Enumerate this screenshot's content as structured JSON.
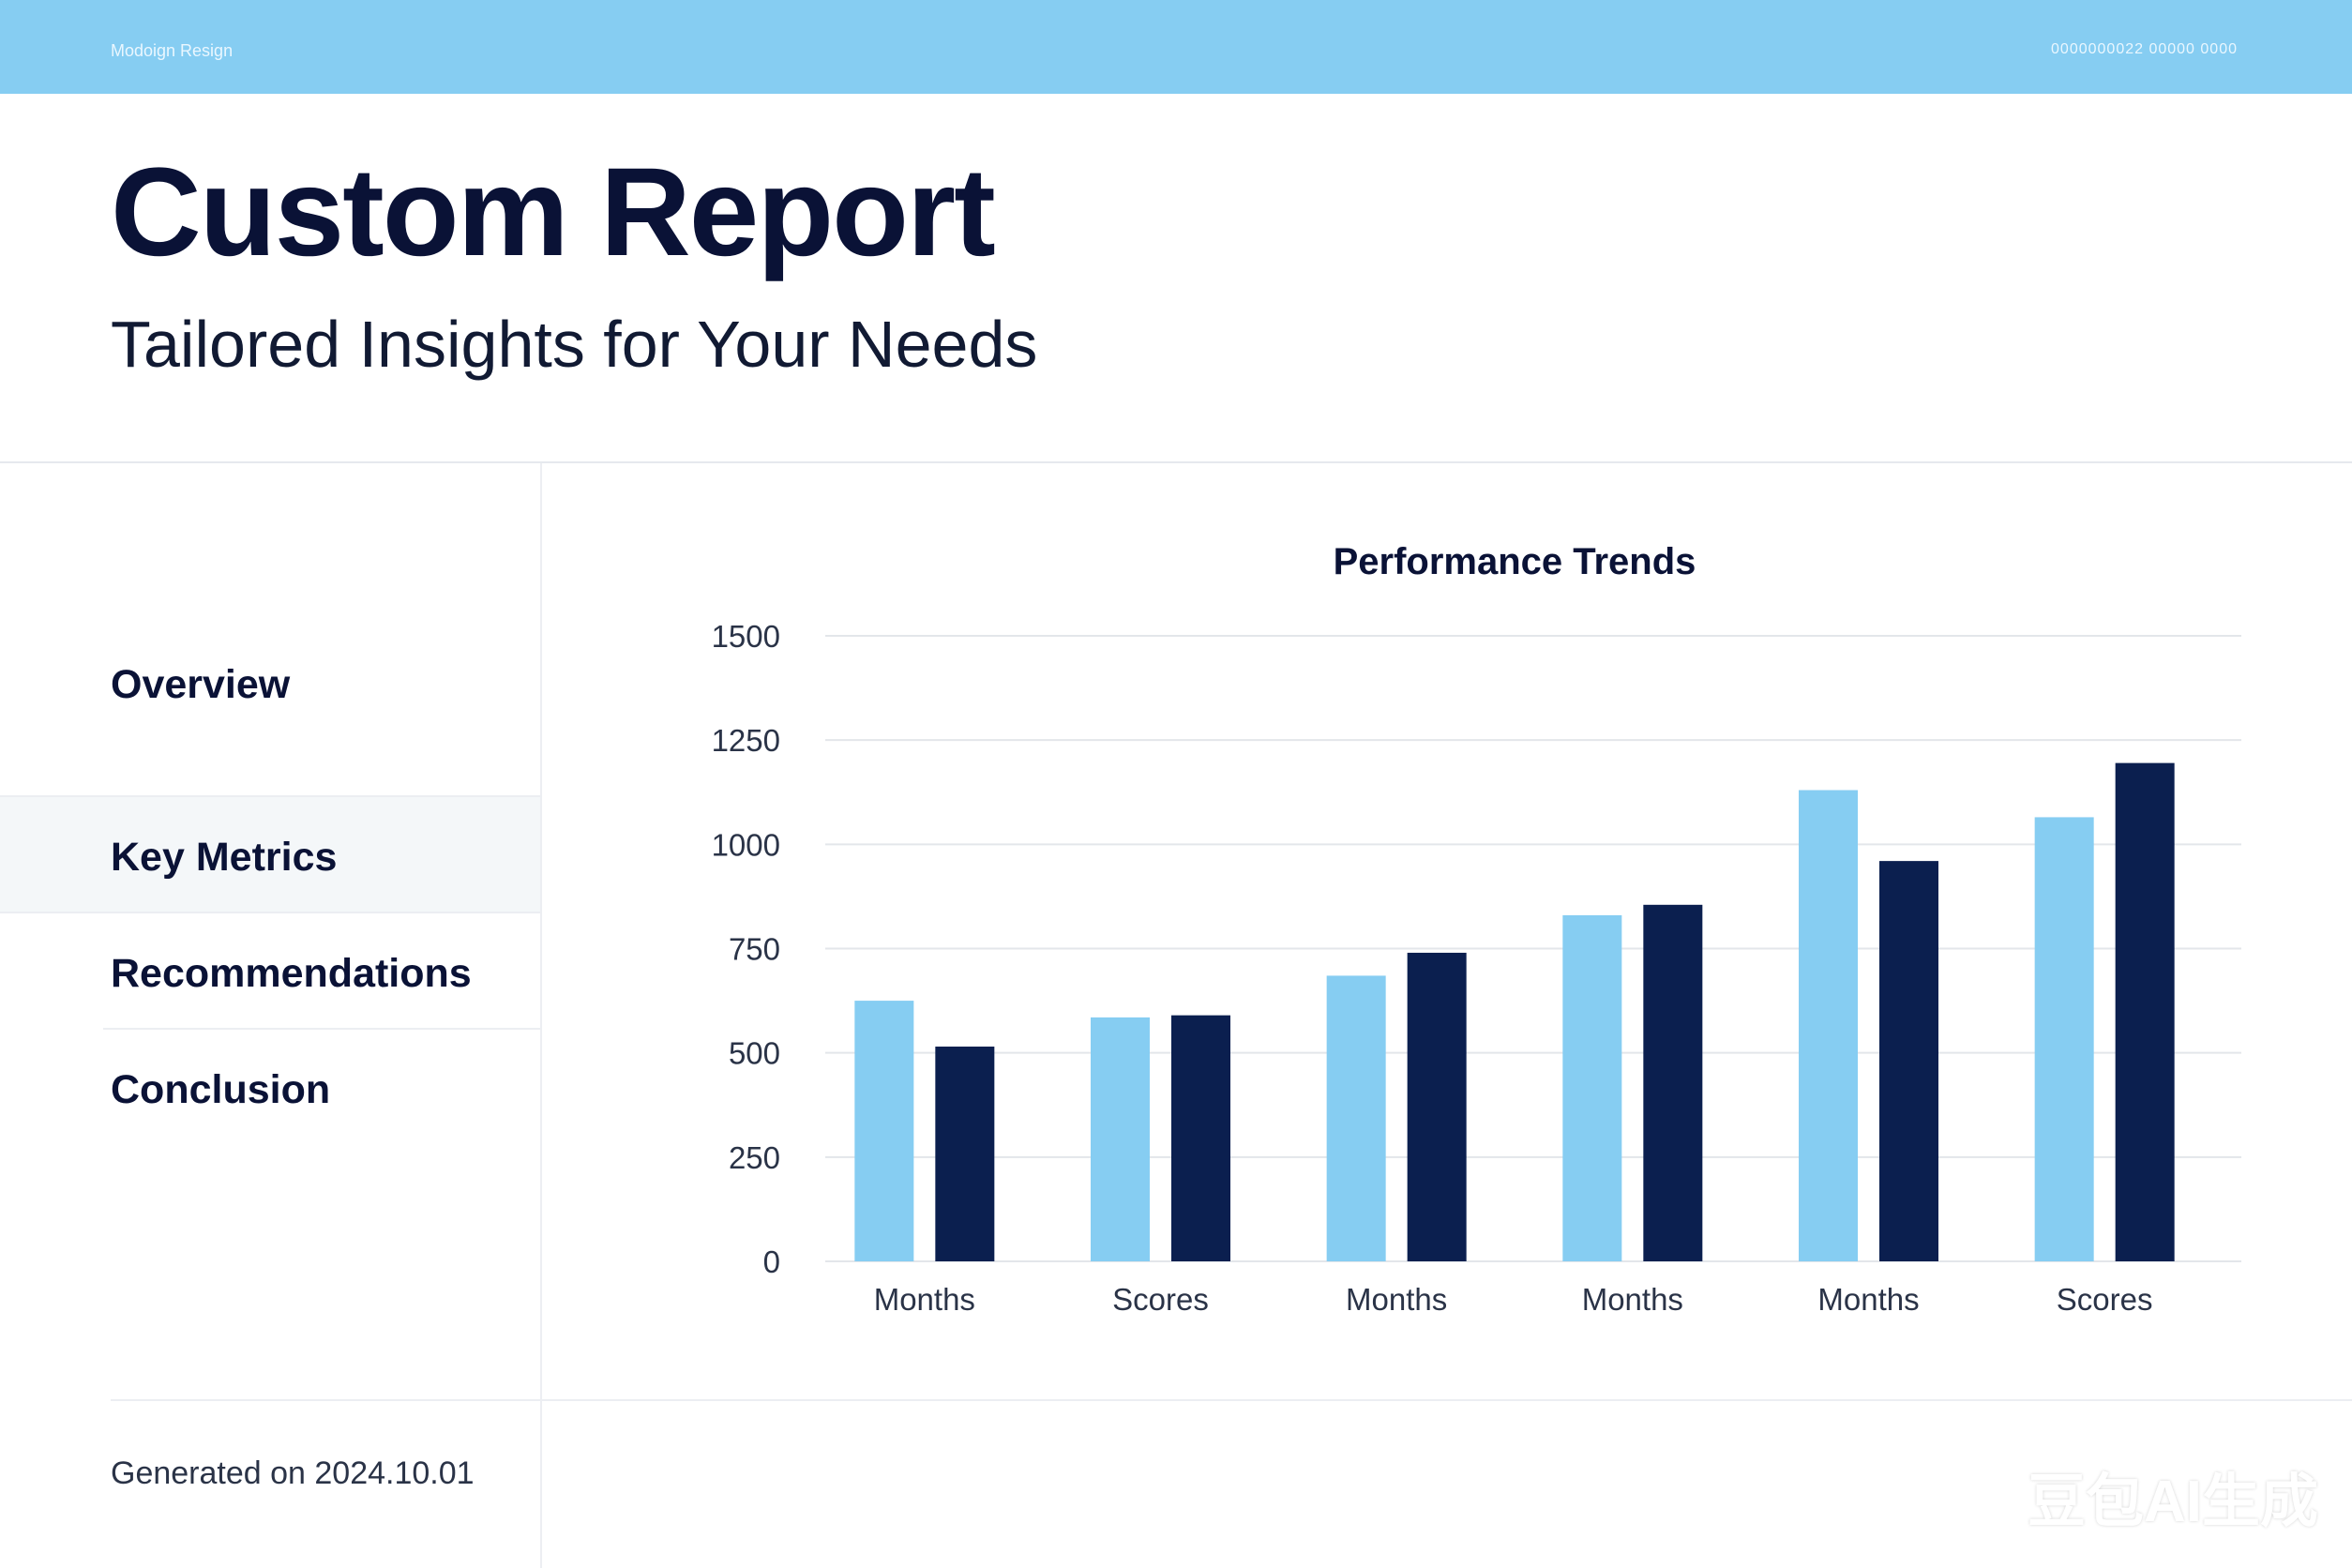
{
  "header": {
    "brand": "Modoign Resign",
    "meta": "0000000022 00000 0000"
  },
  "title": "Custom Report",
  "subtitle": "Tailored Insights for Your Needs",
  "sidebar": {
    "items": [
      {
        "label": "Overview",
        "active": false
      },
      {
        "label": "Key Metrics",
        "active": true
      },
      {
        "label": "Recommendations",
        "active": false
      },
      {
        "label": "Conclusion",
        "active": false
      }
    ]
  },
  "footer": {
    "generated": "Generated on 2024.10.01"
  },
  "watermark": "豆包AI生成",
  "colors": {
    "series1": "#86cdf2",
    "series2": "#0b1f4f",
    "header": "#86cdf2"
  },
  "chart_data": {
    "type": "bar",
    "title": "Performance Trends",
    "categories": [
      "Months",
      "Scores",
      "Months",
      "Months",
      "Months",
      "Scores"
    ],
    "series": [
      {
        "values": [
          625,
          585,
          685,
          830,
          1130,
          1065
        ]
      },
      {
        "values": [
          515,
          590,
          740,
          855,
          960,
          1195
        ]
      }
    ],
    "yticks": [
      0,
      250,
      500,
      750,
      1000,
      1250,
      1500
    ],
    "ylim": [
      0,
      1500
    ],
    "grid": true,
    "legend": "none"
  }
}
